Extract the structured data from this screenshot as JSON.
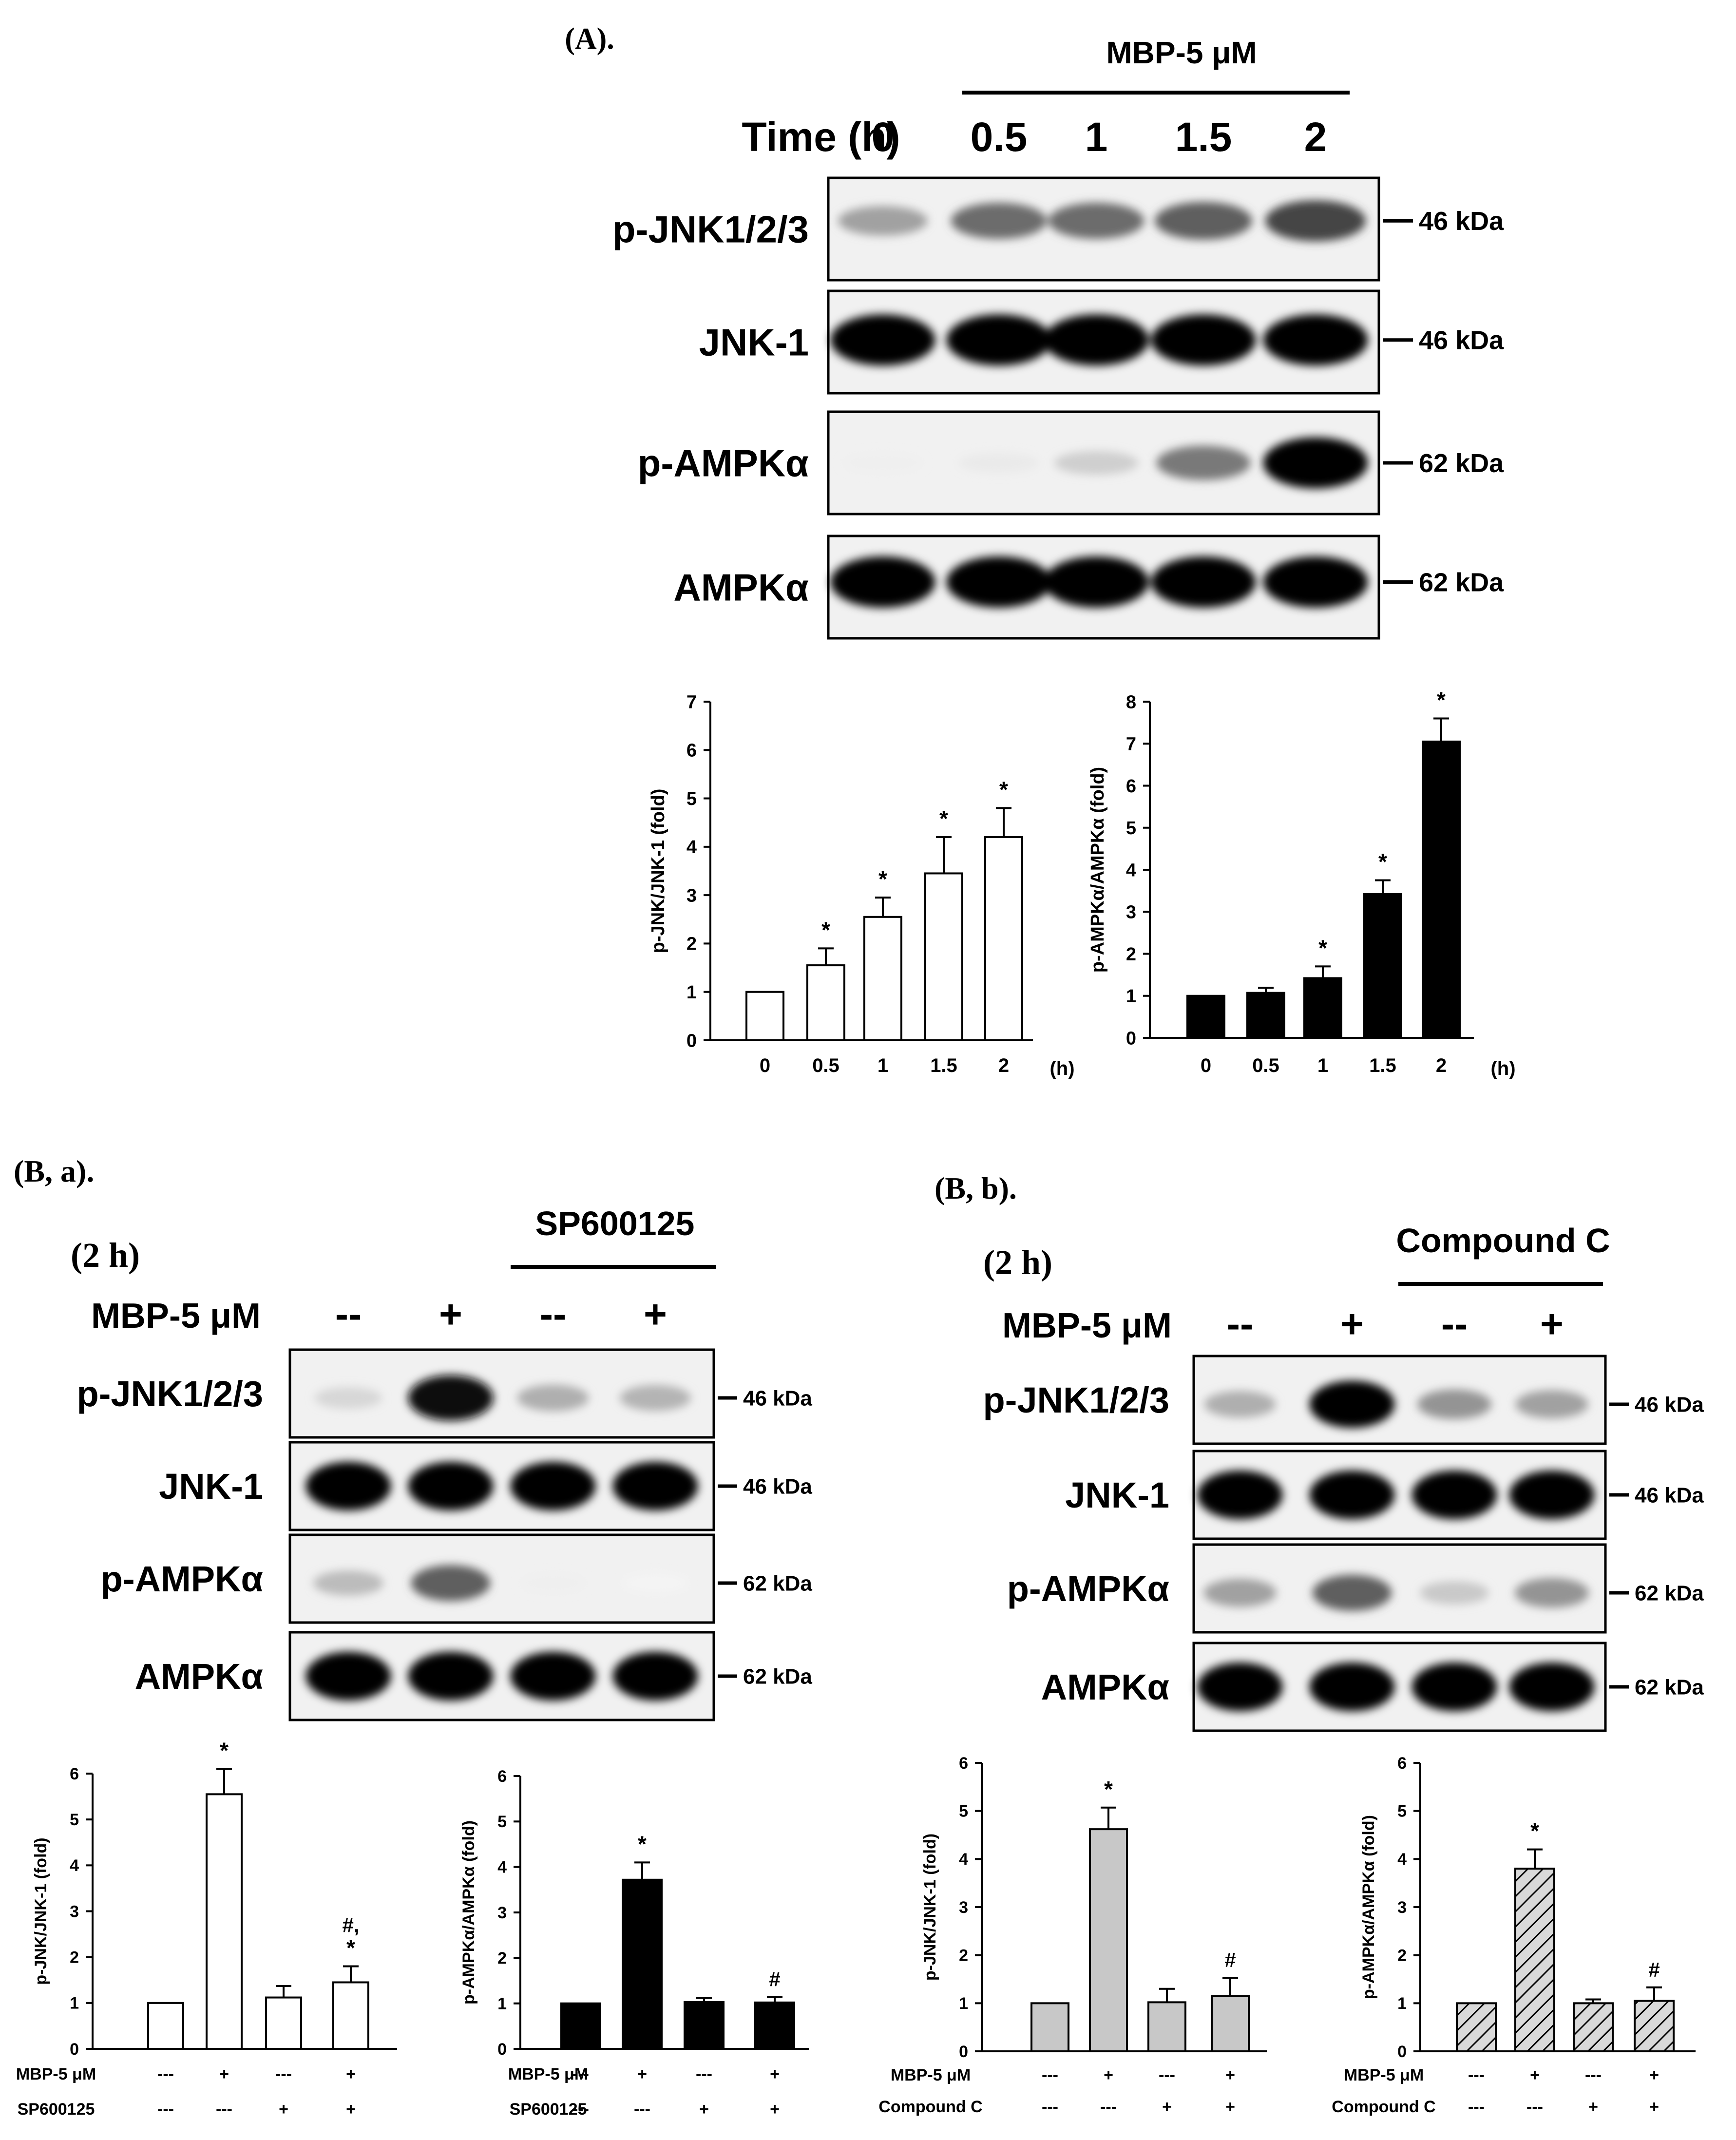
{
  "panel_a": {
    "title": "(A).",
    "treatment_label": "MBP-5 μM",
    "time_header": "Time (h)",
    "time_labels": [
      "0",
      "0.5",
      "1",
      "1.5",
      "2"
    ],
    "blots": [
      {
        "label": "p-JNK1/2/3",
        "marker": "46 kDa",
        "intensity": [
          0.35,
          0.55,
          0.55,
          0.6,
          0.7
        ]
      },
      {
        "label": "JNK-1",
        "marker": "46 kDa",
        "intensity": [
          1,
          1,
          1,
          1,
          1
        ]
      },
      {
        "label": "p-AMPKα",
        "marker": "62 kDa",
        "intensity": [
          0.06,
          0.08,
          0.18,
          0.5,
          1
        ]
      },
      {
        "label": "AMPKα",
        "marker": "62 kDa",
        "intensity": [
          1,
          1,
          1,
          1,
          1
        ]
      }
    ]
  },
  "panel_ba": {
    "title": "(B, a).",
    "time": "(2 h)",
    "inhibitor": "SP600125",
    "mbp_label": "MBP-5 μM",
    "lane_signs": [
      "--",
      "+",
      "--",
      "+"
    ],
    "blots": [
      {
        "label": "p-JNK1/2/3",
        "marker": "46 kDa",
        "intensity": [
          0.15,
          0.9,
          0.3,
          0.28
        ]
      },
      {
        "label": "JNK-1",
        "marker": "46 kDa",
        "intensity": [
          1,
          1,
          1,
          1
        ]
      },
      {
        "label": "p-AMPKα",
        "marker": "62 kDa",
        "intensity": [
          0.25,
          0.6,
          0.06,
          0.04
        ]
      },
      {
        "label": "AMPKα",
        "marker": "62 kDa",
        "intensity": [
          1,
          1,
          1,
          1
        ]
      }
    ]
  },
  "panel_bb": {
    "title": "(B, b).",
    "time": "(2 h)",
    "inhibitor": "Compound C",
    "mbp_label": "MBP-5 μM",
    "lane_signs": [
      "--",
      "+",
      "--",
      "+"
    ],
    "blots": [
      {
        "label": "p-JNK1/2/3",
        "marker": "46 kDa",
        "intensity": [
          0.3,
          0.95,
          0.4,
          0.35
        ]
      },
      {
        "label": "JNK-1",
        "marker": "46 kDa",
        "intensity": [
          1,
          1,
          1,
          1
        ]
      },
      {
        "label": "p-AMPKα",
        "marker": "62 kDa",
        "intensity": [
          0.35,
          0.6,
          0.2,
          0.4
        ]
      },
      {
        "label": "AMPKα",
        "marker": "62 kDa",
        "intensity": [
          1,
          1,
          1,
          1
        ]
      }
    ]
  },
  "chart_data": [
    {
      "type": "bar",
      "id": "a-jnk",
      "categories": [
        "0",
        "0.5",
        "1",
        "1.5",
        "2"
      ],
      "values": [
        1,
        1.55,
        2.55,
        3.45,
        4.2
      ],
      "errors": [
        0,
        0.35,
        0.4,
        0.75,
        0.6
      ],
      "annotations": [
        "",
        "*",
        "*",
        "*",
        "*"
      ],
      "ylabel": "p-JNK/JNK-1 (fold)",
      "unit_label": "(h)",
      "ylim": [
        0,
        7
      ],
      "yticks": [
        0,
        1,
        2,
        3,
        4,
        5,
        6,
        7
      ],
      "fill": "white"
    },
    {
      "type": "bar",
      "id": "a-ampk",
      "categories": [
        "0",
        "0.5",
        "1",
        "1.5",
        "2"
      ],
      "values": [
        1,
        1.07,
        1.42,
        3.42,
        7.05
      ],
      "errors": [
        0,
        0.12,
        0.28,
        0.33,
        0.55
      ],
      "annotations": [
        "",
        "",
        "*",
        "*",
        "*"
      ],
      "ylabel": "p-AMPKα/AMPKα (fold)",
      "unit_label": "(h)",
      "ylim": [
        0,
        8
      ],
      "yticks": [
        0,
        1,
        2,
        3,
        4,
        5,
        6,
        7,
        8
      ],
      "fill": "black"
    },
    {
      "type": "bar",
      "id": "ba-jnk",
      "rows": [
        {
          "label": "MBP-5 μM",
          "values": [
            "---",
            "+",
            "---",
            "+"
          ]
        },
        {
          "label": "SP600125",
          "values": [
            "---",
            "---",
            "+",
            "+"
          ]
        }
      ],
      "values": [
        1,
        5.55,
        1.12,
        1.45
      ],
      "errors": [
        0,
        0.55,
        0.25,
        0.35
      ],
      "annotations": [
        "",
        "*",
        "",
        "#,\n*"
      ],
      "ylabel": "p-JNK/JNK-1 (fold)",
      "ylim": [
        0,
        6
      ],
      "yticks": [
        0,
        1,
        2,
        3,
        4,
        5,
        6
      ],
      "fill": "white"
    },
    {
      "type": "bar",
      "id": "ba-ampk",
      "rows": [
        {
          "label": "MBP-5 μM",
          "values": [
            "---",
            "+",
            "---",
            "+"
          ]
        },
        {
          "label": "SP600125",
          "values": [
            "---",
            "---",
            "+",
            "+"
          ]
        }
      ],
      "values": [
        1,
        3.72,
        1.03,
        1.02
      ],
      "errors": [
        0,
        0.38,
        0.09,
        0.12
      ],
      "annotations": [
        "",
        "*",
        "",
        "#"
      ],
      "ylabel": "p-AMPKα/AMPKα (fold)",
      "ylim": [
        0,
        6
      ],
      "yticks": [
        0,
        1,
        2,
        3,
        4,
        5,
        6
      ],
      "fill": "black"
    },
    {
      "type": "bar",
      "id": "bb-jnk",
      "rows": [
        {
          "label": "MBP-5 μM",
          "values": [
            "---",
            "+",
            "---",
            "+"
          ]
        },
        {
          "label": "Compound C",
          "values": [
            "---",
            "---",
            "+",
            "+"
          ]
        }
      ],
      "values": [
        1,
        4.62,
        1.02,
        1.15
      ],
      "errors": [
        0,
        0.45,
        0.28,
        0.38
      ],
      "annotations": [
        "",
        "*",
        "",
        "#"
      ],
      "ylabel": "p-JNK/JNK-1 (fold)",
      "ylim": [
        0,
        6
      ],
      "yticks": [
        0,
        1,
        2,
        3,
        4,
        5,
        6
      ],
      "fill": "gray"
    },
    {
      "type": "bar",
      "id": "bb-ampk",
      "rows": [
        {
          "label": "MBP-5 μM",
          "values": [
            "---",
            "+",
            "---",
            "+"
          ]
        },
        {
          "label": "Compound C",
          "values": [
            "---",
            "---",
            "+",
            "+"
          ]
        }
      ],
      "values": [
        1,
        3.8,
        1.0,
        1.05
      ],
      "errors": [
        0,
        0.4,
        0.08,
        0.28
      ],
      "annotations": [
        "",
        "*",
        "",
        "#"
      ],
      "ylabel": "p-AMPKα/AMPKα (fold)",
      "ylim": [
        0,
        6
      ],
      "yticks": [
        0,
        1,
        2,
        3,
        4,
        5,
        6
      ],
      "fill": "hatch"
    }
  ]
}
